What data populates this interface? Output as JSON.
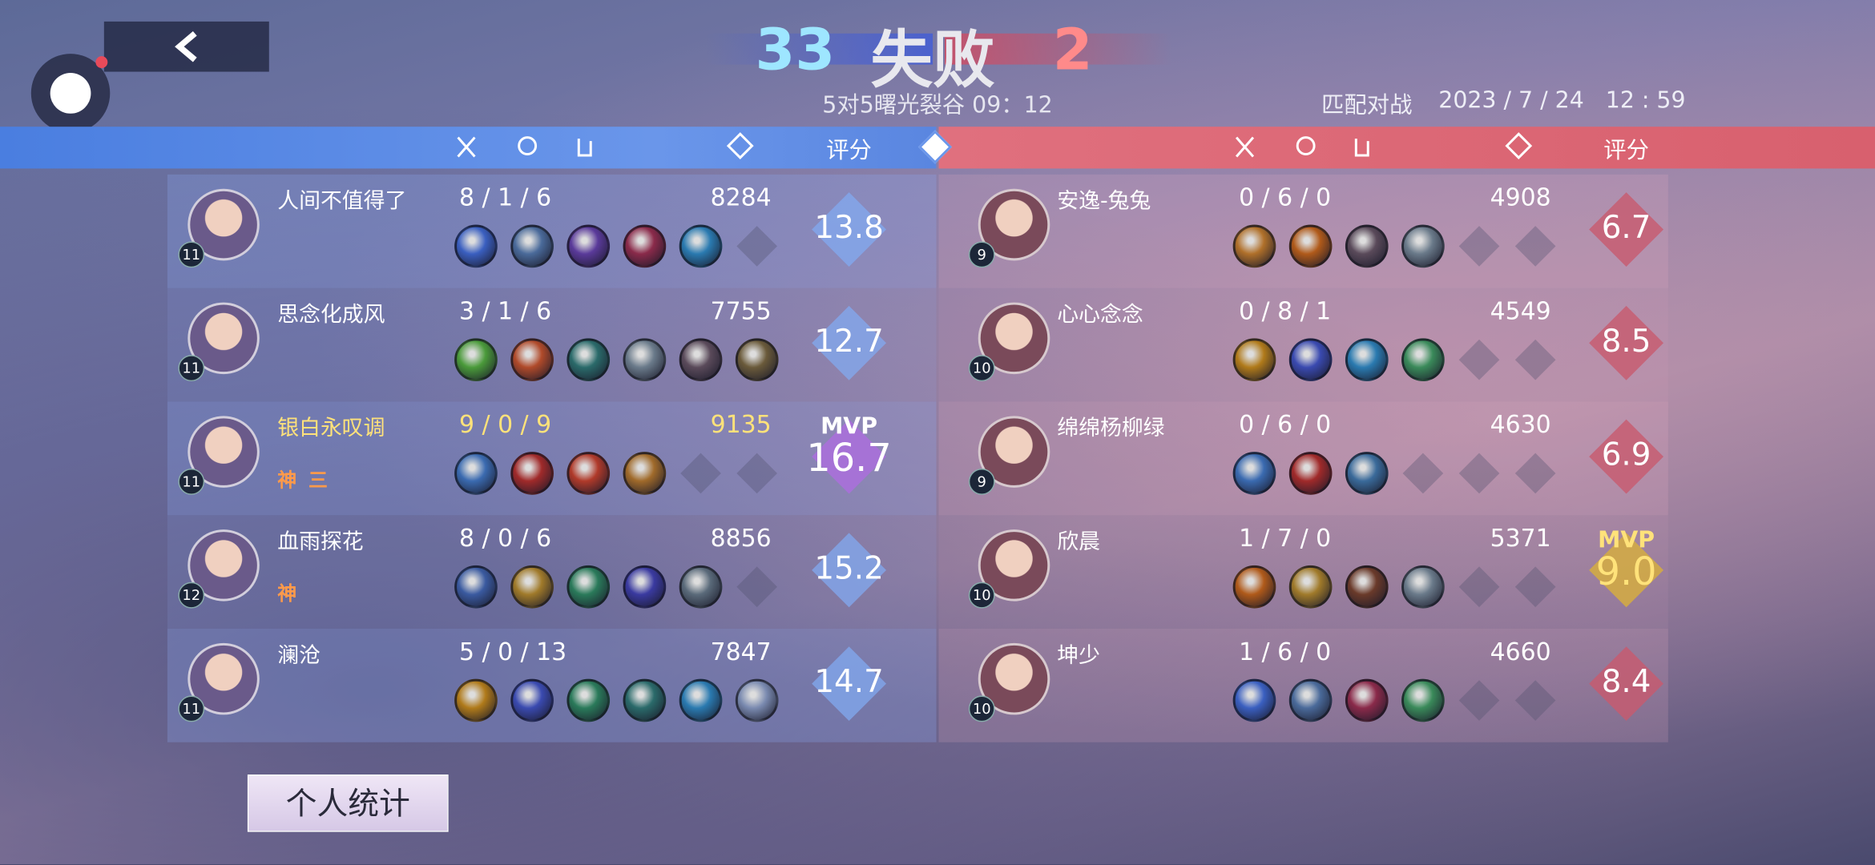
{
  "header": {
    "score_left": 33,
    "result": "失败",
    "score_right": 2,
    "mode": "5对5曙光裂谷 09：12",
    "match_type": "匹配对战",
    "datetime": "2023 / 7 / 24   12 : 59"
  },
  "columns": {
    "rating_left": "评分",
    "rating_right": "评分"
  },
  "mvp_label": "MVP",
  "teams": [
    {
      "side": "left",
      "players": [
        {
          "name": "人间不值得了",
          "level": 11,
          "kda": "8 / 1 / 6",
          "gold": 8284,
          "rating": "13.8",
          "badges": [],
          "items": [
            "#3a5fc0",
            "#4a6a9a",
            "#5a3a9a",
            "#8a2a4a",
            "#2a7ab0"
          ]
        },
        {
          "name": "思念化成风",
          "level": 11,
          "kda": "3 / 1 / 6",
          "gold": 7755,
          "rating": "12.7",
          "badges": [],
          "items": [
            "#4a9a3a",
            "#b04a2a",
            "#2a6a6a",
            "#6a7a8a",
            "#5a4a5a",
            "#6a5a3a"
          ]
        },
        {
          "name": "银白永叹调",
          "level": 11,
          "kda": "9 / 0 / 9",
          "gold": 9135,
          "rating": "16.7",
          "mvp": true,
          "badges": [
            "神",
            "三"
          ],
          "items": [
            "#3a6ab0",
            "#a02a2a",
            "#b03a2a",
            "#a06a2a"
          ]
        },
        {
          "name": "血雨探花",
          "level": 12,
          "kda": "8 / 0 / 6",
          "gold": 8856,
          "rating": "15.2",
          "badges": [
            "神"
          ],
          "items": [
            "#3a5aa0",
            "#a07a2a",
            "#2a7a5a",
            "#3a3aa0",
            "#5a6a7a"
          ]
        },
        {
          "name": "澜沧",
          "level": 11,
          "kda": "5 / 0 / 13",
          "gold": 7847,
          "rating": "14.7",
          "badges": [],
          "items": [
            "#b07a1a",
            "#3a4ab0",
            "#2a7a5a",
            "#2a6a6a",
            "#2a7ab0",
            "#7a8ab0"
          ]
        }
      ]
    },
    {
      "side": "right",
      "players": [
        {
          "name": "安逸-兔兔",
          "level": 9,
          "kda": "0 / 6 / 0",
          "gold": 4908,
          "rating": "6.7",
          "badges": [],
          "items": [
            "#b0702a",
            "#b05a1a",
            "#5a4a5a",
            "#6a7a8a"
          ]
        },
        {
          "name": "心心念念",
          "level": 10,
          "kda": "0 / 8 / 1",
          "gold": 4549,
          "rating": "8.5",
          "badges": [],
          "items": [
            "#b07a1a",
            "#3a4ab0",
            "#2a7ab0",
            "#3a8a5a"
          ]
        },
        {
          "name": "绵绵杨柳绿",
          "level": 9,
          "kda": "0 / 6 / 0",
          "gold": 4630,
          "rating": "6.9",
          "badges": [],
          "items": [
            "#3a6ab0",
            "#a02a2a",
            "#3a6a9a"
          ]
        },
        {
          "name": "欣晨",
          "level": 10,
          "kda": "1 / 7 / 0",
          "gold": 5371,
          "rating": "9.0",
          "mvp": true,
          "badges": [],
          "items": [
            "#b05a1a",
            "#a07a2a",
            "#6a3a2a",
            "#6a7a8a"
          ]
        },
        {
          "name": "坤少",
          "level": 10,
          "kda": "1 / 6 / 0",
          "gold": 4660,
          "rating": "8.4",
          "badges": [],
          "items": [
            "#3a5fc0",
            "#4a6a9a",
            "#8a2a4a",
            "#3a8a5a"
          ]
        }
      ]
    }
  ],
  "button": "个人统计"
}
